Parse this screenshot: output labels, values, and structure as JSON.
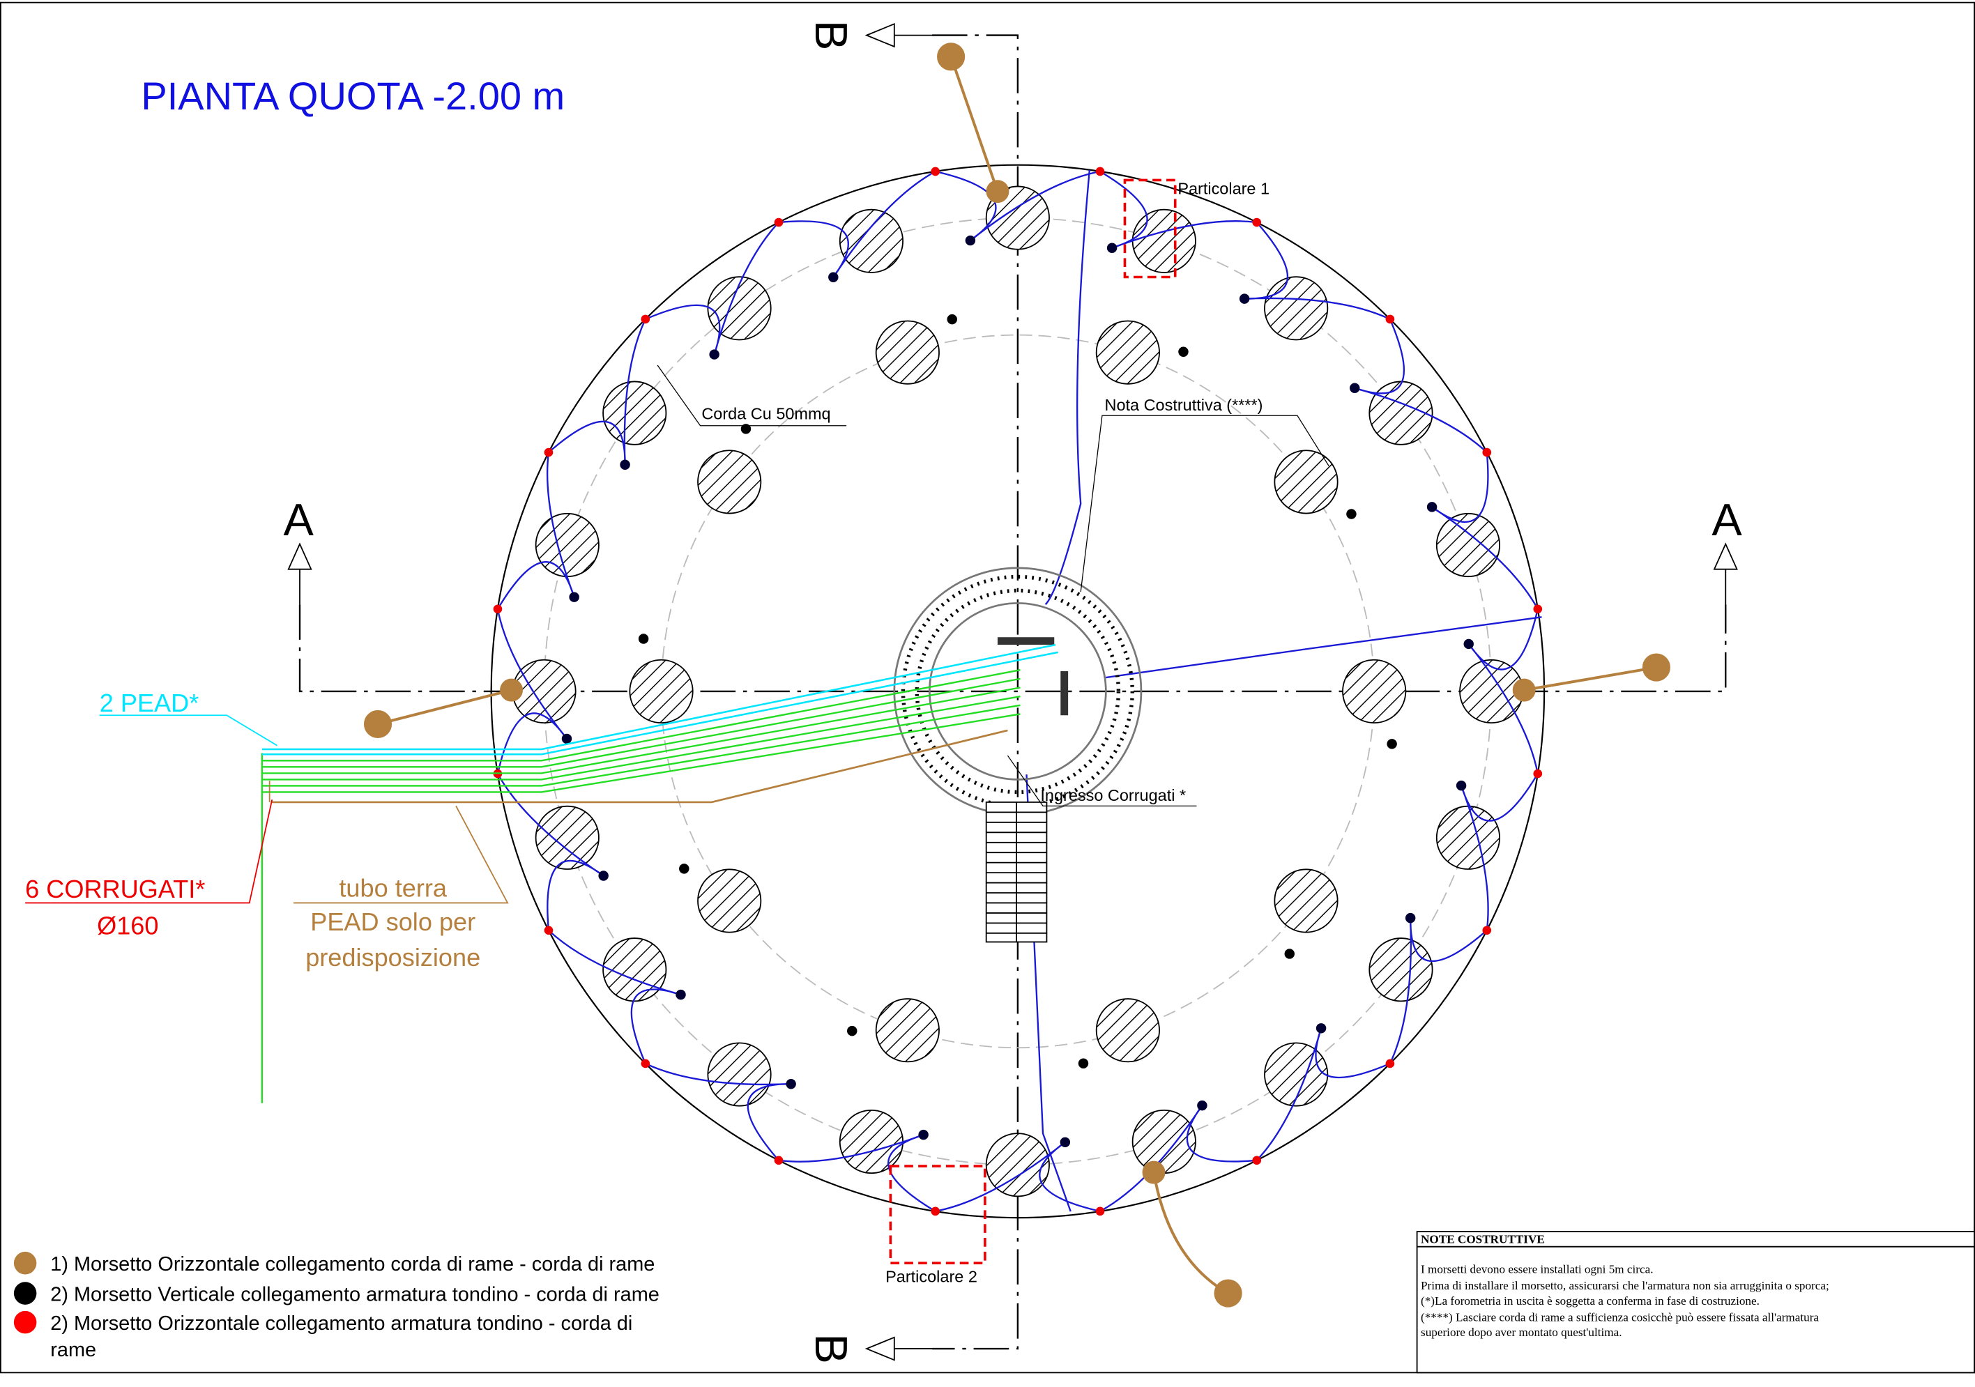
{
  "title": "PIANTA QUOTA -2.00 m",
  "section_marks": {
    "a_left": "A",
    "a_right": "A",
    "b_top": "B",
    "b_bottom": "B"
  },
  "labels": {
    "particolare_1": "Particolare 1",
    "particolare_2": "Particolare 2",
    "corda": "Corda Cu 50mmq",
    "nota": "Nota Costruttiva (****)",
    "ingresso": "Ingresso Corrugati *",
    "pead": "2 PEAD*",
    "corrugati": [
      "6 CORRUGATI*",
      "Ø160"
    ],
    "tubo": [
      "tubo terra",
      "PEAD solo per",
      "predisposizione"
    ]
  },
  "legend": [
    {
      "lines": [
        "1) Morsetto Orizzontale collegamento corda di rame - corda di rame"
      ]
    },
    {
      "lines": [
        "2) Morsetto Verticale collegamento armatura tondino - corda di rame"
      ]
    },
    {
      "lines": [
        "2) Morsetto Orizzontale collegamento armatura tondino - corda di",
        "rame"
      ]
    }
  ],
  "notes": {
    "title": "NOTE COSTRUTTIVE",
    "lines": [
      "I morsetti devono essere installati ogni 5m circa.",
      "Prima di installare il morsetto, assicurarsi che l'armatura non sia arrugginita o sporca;",
      "(*)La forometria in uscita è soggetta a conferma in fase di costruzione.",
      "(****) Lasciare corda di rame a sufficienza cosicchè può essere fissata all'armatura",
      "superiore dopo aver montato quest'ultima."
    ]
  }
}
